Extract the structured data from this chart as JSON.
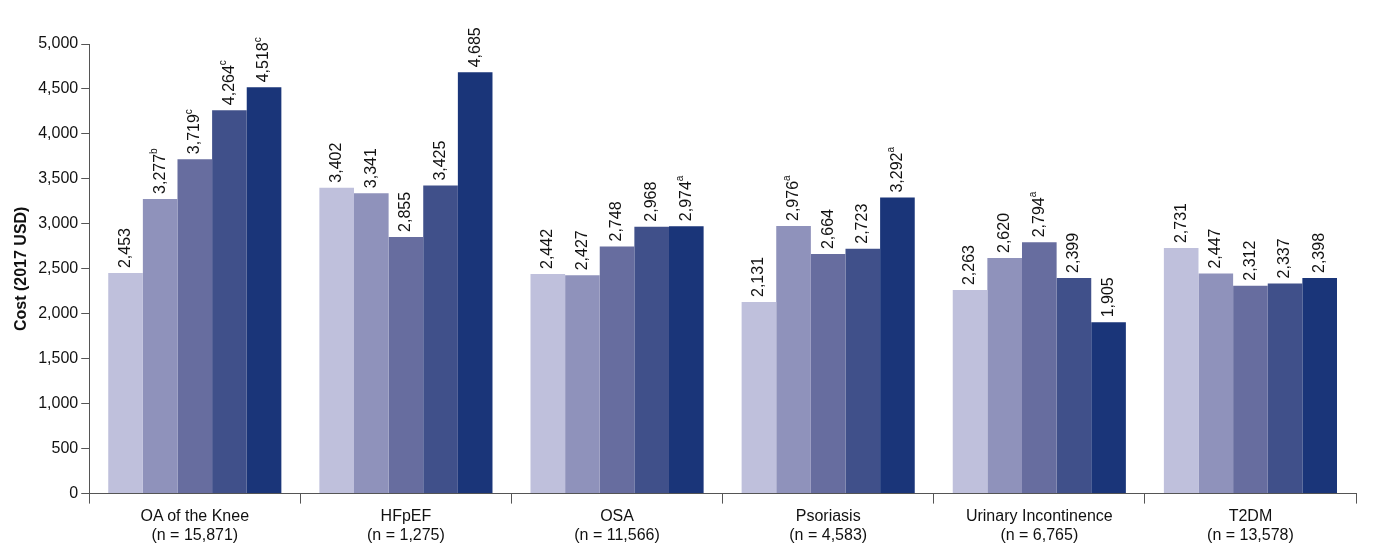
{
  "chart_data": {
    "type": "bar",
    "ylabel": "Cost (2017 USD)",
    "categories": [
      "OA of the Knee\n(n = 15,871)",
      "HFpEF\n(n = 1,275)",
      "OSA\n(n = 11,566)",
      "Psoriasis\n(n = 4,583)",
      "Urinary Incontinence\n(n = 6,765)",
      "T2DM\n(n = 13,578)"
    ],
    "series": [
      {
        "color": "#bfc0dc",
        "values": [
          2453,
          3402,
          2442,
          2131,
          2263,
          2731
        ],
        "value_labels": [
          "2,453",
          "3,402",
          "2,442",
          "2,131",
          "2,263",
          "2,731"
        ]
      },
      {
        "color": "#8f92bb",
        "values": [
          3277,
          3341,
          2427,
          2976,
          2620,
          2447
        ],
        "value_labels": [
          "3,277$^{b}$",
          "3,341",
          "2,427",
          "2,976$^{a}$",
          "2,620",
          "2,447"
        ]
      },
      {
        "color": "#676d9f",
        "values": [
          3719,
          2855,
          2748,
          2664,
          2794,
          2312
        ],
        "value_labels": [
          "3,719$^{c}$",
          "2,855",
          "2,748",
          "2,664",
          "2,794$^{a}$",
          "2,312"
        ]
      },
      {
        "color": "#40508a",
        "values": [
          4264,
          3425,
          2968,
          2723,
          2399,
          2337
        ],
        "value_labels": [
          "4,264$^{c}$",
          "3,425",
          "2,968",
          "2,723",
          "2,399",
          "2,337"
        ]
      },
      {
        "color": "#1a3579",
        "values": [
          4518,
          4685,
          2974,
          3292,
          1905,
          2398
        ],
        "value_labels": [
          "4,518$^{c}$",
          "4,685",
          "2,974$^{a}$",
          "3,292$^{a}$",
          "1,905",
          "2,398"
        ]
      }
    ],
    "ylim": [
      0,
      5000
    ],
    "yticks": [
      0,
      500,
      {
        "value": 1000,
        "label": "1,000"
      },
      {
        "value": 1500,
        "label": "1,500"
      },
      {
        "value": 2000,
        "label": "2,000"
      },
      {
        "value": 2500,
        "label": "2,500"
      },
      {
        "value": 3000,
        "label": "3,000"
      },
      {
        "value": 3500,
        "label": "3,500"
      },
      {
        "value": 4000,
        "label": "4,000"
      },
      {
        "value": 4500,
        "label": "4,500"
      },
      {
        "value": 5000,
        "label": "5,000"
      }
    ],
    "grid": false,
    "legend": false
  }
}
